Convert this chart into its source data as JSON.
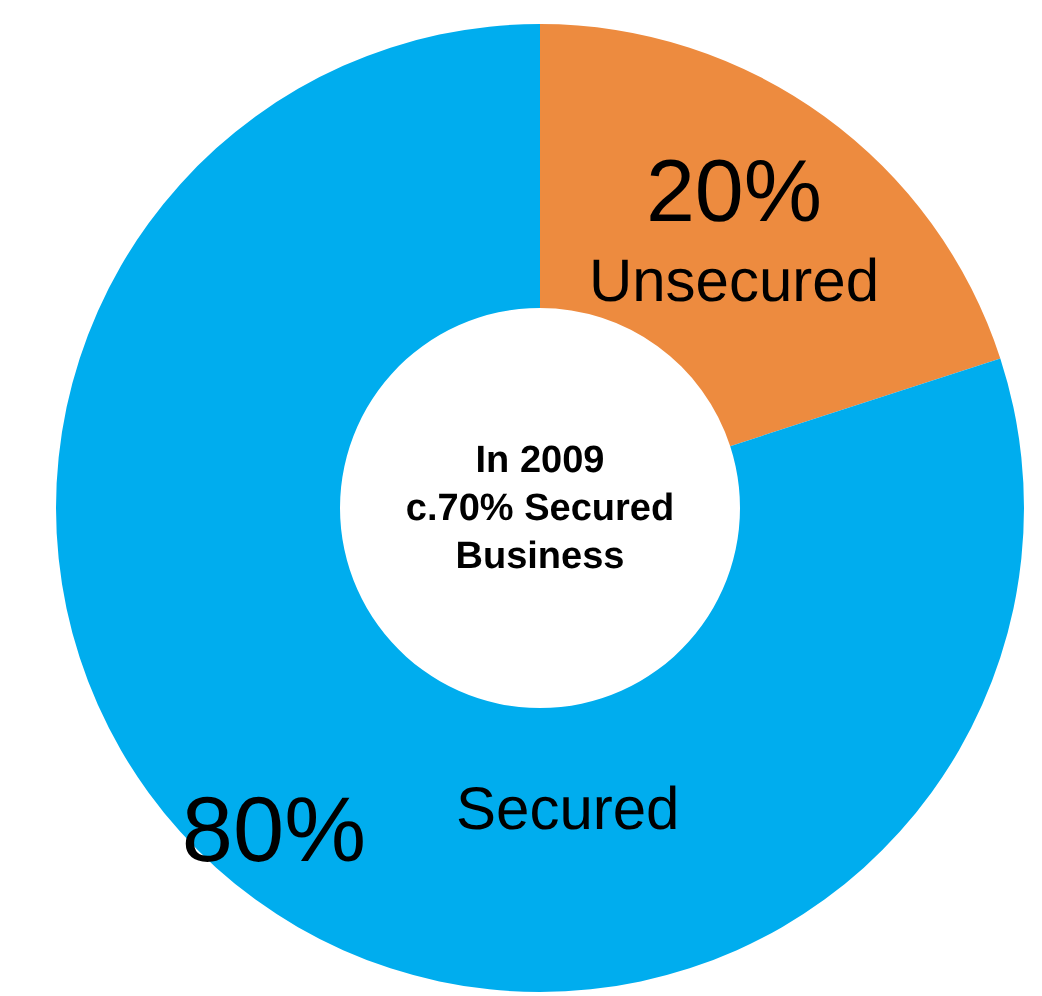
{
  "chart_data": {
    "type": "donut",
    "categories": [
      "Unsecured",
      "Secured"
    ],
    "values": [
      20,
      80
    ],
    "value_labels": [
      "20%",
      "80%"
    ],
    "colors": [
      "#ed8b3f",
      "#00adee"
    ],
    "annotations": [
      "In 2009\nc.70% Secured\nBusiness"
    ],
    "legend": false
  }
}
